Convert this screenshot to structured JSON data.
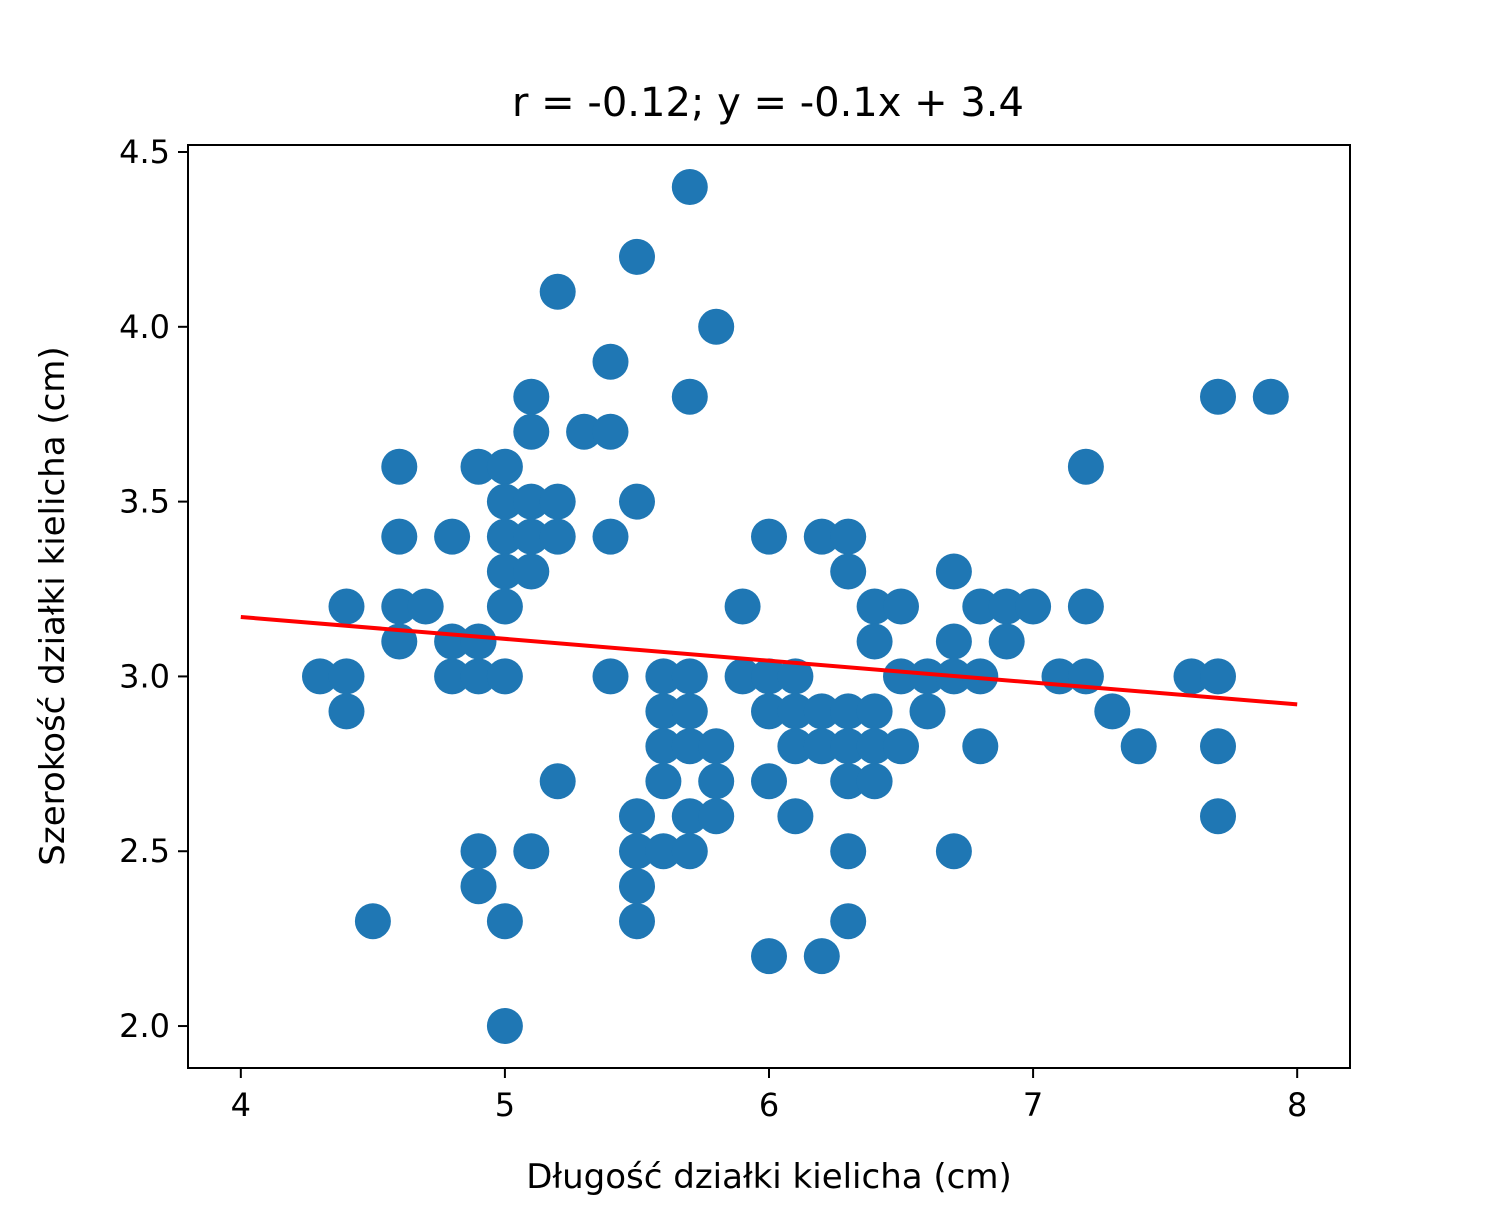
{
  "chart_data": {
    "type": "scatter",
    "title": "r = -0.12; y = -0.1x + 3.4",
    "xlabel": "Długość działki kielicha (cm)",
    "ylabel": "Szerokość działki kielicha (cm)",
    "xlim": [
      3.8,
      8.2
    ],
    "ylim": [
      1.88,
      4.52
    ],
    "xticks": [
      4,
      5,
      6,
      7,
      8
    ],
    "xtick_labels": [
      "4",
      "5",
      "6",
      "7",
      "8"
    ],
    "yticks": [
      2.0,
      2.5,
      3.0,
      3.5,
      4.0,
      4.5
    ],
    "ytick_labels": [
      "2.0",
      "2.5",
      "3.0",
      "3.5",
      "4.0",
      "4.5"
    ],
    "grid": false,
    "series": [
      {
        "type": "scatter",
        "color": "#1f77b4",
        "points": [
          [
            4.3,
            3.0
          ],
          [
            4.4,
            3.0
          ],
          [
            4.4,
            2.9
          ],
          [
            4.4,
            3.2
          ],
          [
            4.5,
            2.3
          ],
          [
            4.6,
            3.1
          ],
          [
            4.6,
            3.4
          ],
          [
            4.6,
            3.6
          ],
          [
            4.6,
            3.2
          ],
          [
            4.7,
            3.2
          ],
          [
            4.8,
            3.4
          ],
          [
            4.8,
            3.0
          ],
          [
            4.8,
            3.1
          ],
          [
            4.9,
            3.0
          ],
          [
            4.9,
            3.1
          ],
          [
            4.9,
            3.6
          ],
          [
            4.9,
            2.5
          ],
          [
            4.9,
            2.4
          ],
          [
            5.0,
            3.6
          ],
          [
            5.0,
            3.4
          ],
          [
            5.0,
            3.5
          ],
          [
            5.0,
            3.3
          ],
          [
            5.0,
            3.2
          ],
          [
            5.0,
            3.0
          ],
          [
            5.0,
            2.3
          ],
          [
            5.0,
            2.0
          ],
          [
            5.1,
            3.5
          ],
          [
            5.1,
            3.8
          ],
          [
            5.1,
            3.7
          ],
          [
            5.1,
            3.3
          ],
          [
            5.1,
            3.4
          ],
          [
            5.1,
            2.5
          ],
          [
            5.2,
            4.1
          ],
          [
            5.2,
            3.5
          ],
          [
            5.2,
            3.4
          ],
          [
            5.2,
            2.7
          ],
          [
            5.3,
            3.7
          ],
          [
            5.4,
            3.9
          ],
          [
            5.4,
            3.7
          ],
          [
            5.4,
            3.4
          ],
          [
            5.4,
            3.0
          ],
          [
            5.5,
            4.2
          ],
          [
            5.5,
            3.5
          ],
          [
            5.5,
            2.6
          ],
          [
            5.5,
            2.5
          ],
          [
            5.5,
            2.4
          ],
          [
            5.5,
            2.3
          ],
          [
            5.6,
            3.0
          ],
          [
            5.6,
            2.9
          ],
          [
            5.6,
            2.8
          ],
          [
            5.6,
            2.7
          ],
          [
            5.6,
            2.5
          ],
          [
            5.7,
            4.4
          ],
          [
            5.7,
            3.8
          ],
          [
            5.7,
            3.0
          ],
          [
            5.7,
            2.9
          ],
          [
            5.7,
            2.8
          ],
          [
            5.7,
            2.6
          ],
          [
            5.7,
            2.5
          ],
          [
            5.8,
            4.0
          ],
          [
            5.8,
            2.8
          ],
          [
            5.8,
            2.7
          ],
          [
            5.8,
            2.6
          ],
          [
            5.9,
            3.2
          ],
          [
            5.9,
            3.0
          ],
          [
            6.0,
            3.4
          ],
          [
            6.0,
            3.0
          ],
          [
            6.0,
            2.9
          ],
          [
            6.0,
            2.7
          ],
          [
            6.0,
            2.2
          ],
          [
            6.1,
            3.0
          ],
          [
            6.1,
            2.9
          ],
          [
            6.1,
            2.8
          ],
          [
            6.1,
            2.6
          ],
          [
            6.2,
            3.4
          ],
          [
            6.2,
            2.9
          ],
          [
            6.2,
            2.8
          ],
          [
            6.2,
            2.2
          ],
          [
            6.3,
            3.4
          ],
          [
            6.3,
            3.3
          ],
          [
            6.3,
            2.9
          ],
          [
            6.3,
            2.8
          ],
          [
            6.3,
            2.7
          ],
          [
            6.3,
            2.5
          ],
          [
            6.3,
            2.3
          ],
          [
            6.4,
            3.2
          ],
          [
            6.4,
            3.1
          ],
          [
            6.4,
            2.9
          ],
          [
            6.4,
            2.8
          ],
          [
            6.4,
            2.7
          ],
          [
            6.5,
            3.2
          ],
          [
            6.5,
            3.0
          ],
          [
            6.5,
            2.8
          ],
          [
            6.6,
            3.0
          ],
          [
            6.6,
            2.9
          ],
          [
            6.7,
            3.3
          ],
          [
            6.7,
            3.1
          ],
          [
            6.7,
            3.0
          ],
          [
            6.7,
            2.5
          ],
          [
            6.8,
            3.2
          ],
          [
            6.8,
            3.0
          ],
          [
            6.8,
            2.8
          ],
          [
            6.9,
            3.2
          ],
          [
            6.9,
            3.1
          ],
          [
            7.0,
            3.2
          ],
          [
            7.1,
            3.0
          ],
          [
            7.2,
            3.6
          ],
          [
            7.2,
            3.2
          ],
          [
            7.2,
            3.0
          ],
          [
            7.3,
            2.9
          ],
          [
            7.4,
            2.8
          ],
          [
            7.6,
            3.0
          ],
          [
            7.7,
            3.8
          ],
          [
            7.7,
            3.0
          ],
          [
            7.7,
            2.8
          ],
          [
            7.7,
            2.6
          ],
          [
            7.9,
            3.8
          ]
        ]
      }
    ],
    "trend_line": {
      "color": "#ff0000",
      "x": [
        4.0,
        8.0
      ],
      "y": [
        3.17,
        2.92
      ]
    }
  }
}
